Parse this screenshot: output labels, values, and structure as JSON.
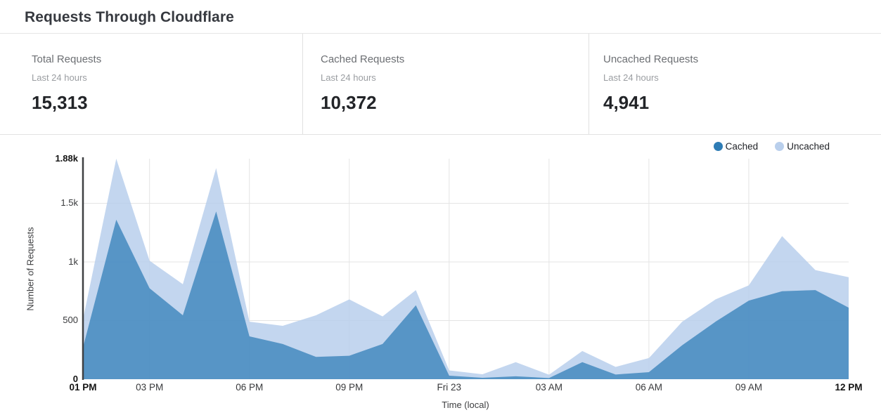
{
  "page_title": "Requests Through Cloudflare",
  "stats": [
    {
      "title": "Total Requests",
      "subtitle": "Last 24 hours",
      "value": "15,313"
    },
    {
      "title": "Cached Requests",
      "subtitle": "Last 24 hours",
      "value": "10,372"
    },
    {
      "title": "Uncached Requests",
      "subtitle": "Last 24 hours",
      "value": "4,941"
    }
  ],
  "legend": [
    {
      "label": "Cached",
      "color": "#2e7cb5"
    },
    {
      "label": "Uncached",
      "color": "#b9cfec"
    }
  ],
  "chart_data": {
    "type": "area",
    "stacked": true,
    "xlabel": "Time (local)",
    "ylabel": "Number of Requests",
    "ylim": [
      0,
      1880
    ],
    "grid": true,
    "legend_position": "top-right",
    "categories": [
      "01 PM",
      "02 PM",
      "03 PM",
      "04 PM",
      "05 PM",
      "06 PM",
      "07 PM",
      "08 PM",
      "09 PM",
      "10 PM",
      "11 PM",
      "Fri 23",
      "01 AM",
      "02 AM",
      "03 AM",
      "04 AM",
      "05 AM",
      "06 AM",
      "07 AM",
      "08 AM",
      "09 AM",
      "10 AM",
      "11 AM",
      "12 PM"
    ],
    "series": [
      {
        "name": "Cached",
        "values": [
          270,
          1360,
          775,
          545,
          1430,
          365,
          300,
          190,
          200,
          300,
          630,
          30,
          12,
          25,
          10,
          145,
          40,
          60,
          290,
          490,
          670,
          750,
          760,
          610
        ]
      },
      {
        "name": "Uncached",
        "values": [
          240,
          520,
          235,
          265,
          370,
          125,
          155,
          355,
          480,
          235,
          130,
          45,
          30,
          120,
          28,
          95,
          65,
          120,
          200,
          190,
          130,
          470,
          170,
          260
        ]
      }
    ],
    "y_ticks": [
      {
        "label": "0",
        "value": 0,
        "bold": true
      },
      {
        "label": "500",
        "value": 500,
        "bold": false
      },
      {
        "label": "1k",
        "value": 1000,
        "bold": false
      },
      {
        "label": "1.5k",
        "value": 1500,
        "bold": false
      },
      {
        "label": "1.88k",
        "value": 1880,
        "bold": true
      }
    ],
    "x_ticks": [
      {
        "label": "01 PM",
        "index": 0,
        "bold": true
      },
      {
        "label": "03 PM",
        "index": 2,
        "bold": false
      },
      {
        "label": "06 PM",
        "index": 5,
        "bold": false
      },
      {
        "label": "09 PM",
        "index": 8,
        "bold": false
      },
      {
        "label": "Fri 23",
        "index": 11,
        "bold": false
      },
      {
        "label": "03 AM",
        "index": 14,
        "bold": false
      },
      {
        "label": "06 AM",
        "index": 17,
        "bold": false
      },
      {
        "label": "09 AM",
        "index": 20,
        "bold": false
      },
      {
        "label": "12 PM",
        "index": 23,
        "bold": true
      }
    ],
    "colors": {
      "cached_fill": "#2e7cb5",
      "uncached_fill": "#b9cfec",
      "gridline": "#e4e4e4",
      "axis_line": "#3f4042"
    }
  }
}
